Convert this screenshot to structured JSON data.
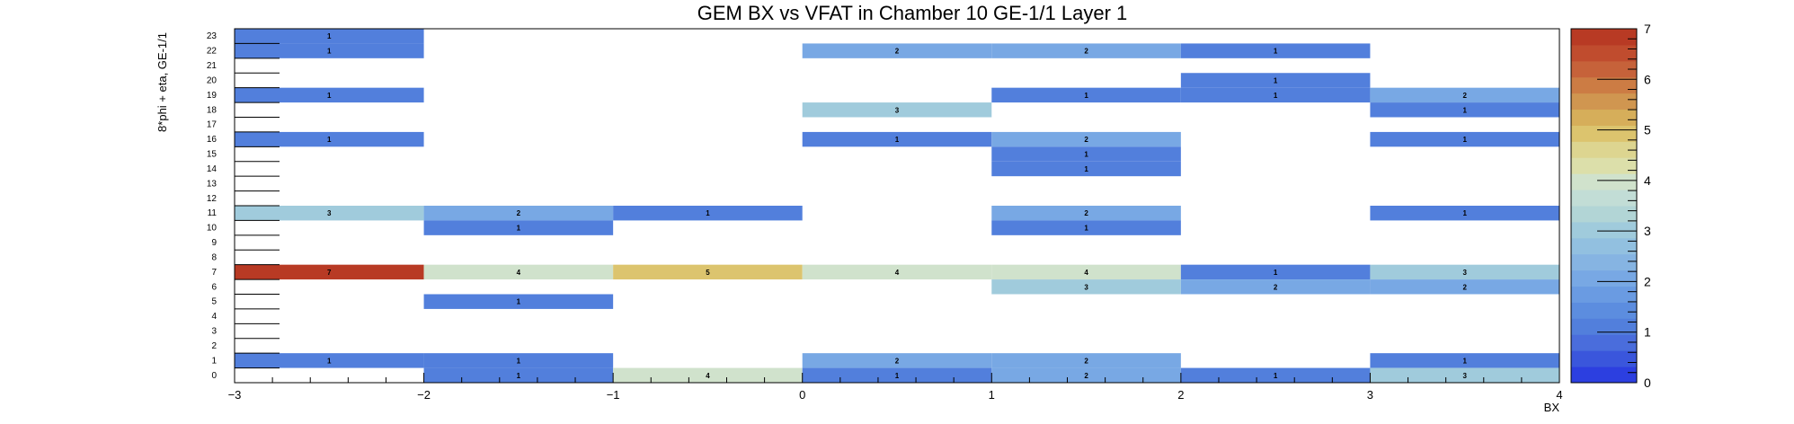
{
  "chart_data": {
    "type": "heatmap",
    "title": "GEM BX vs VFAT in Chamber 10 GE-1/1 Layer 1",
    "xlabel": "BX",
    "ylabel": "8*phi + eta, GE-1/1",
    "xlim": [
      -3,
      4
    ],
    "ylim": [
      0,
      24
    ],
    "x_ticks": [
      "−3",
      "−2",
      "−1",
      "0",
      "1",
      "2",
      "3",
      "4"
    ],
    "y_ticks": [
      "0",
      "1",
      "2",
      "3",
      "4",
      "5",
      "6",
      "7",
      "8",
      "9",
      "10",
      "11",
      "12",
      "13",
      "14",
      "15",
      "16",
      "17",
      "18",
      "19",
      "20",
      "21",
      "22",
      "23"
    ],
    "zlim": [
      0,
      7
    ],
    "z_ticks": [
      "0",
      "1",
      "2",
      "3",
      "4",
      "5",
      "6",
      "7"
    ],
    "cells": [
      {
        "x": -3,
        "y": 23,
        "value": 1
      },
      {
        "x": -3,
        "y": 22,
        "value": 1
      },
      {
        "x": -3,
        "y": 19,
        "value": 1
      },
      {
        "x": -3,
        "y": 16,
        "value": 1
      },
      {
        "x": -3,
        "y": 11,
        "value": 3
      },
      {
        "x": -3,
        "y": 7,
        "value": 7
      },
      {
        "x": -3,
        "y": 1,
        "value": 1
      },
      {
        "x": -2,
        "y": 11,
        "value": 2
      },
      {
        "x": -2,
        "y": 10,
        "value": 1
      },
      {
        "x": -2,
        "y": 7,
        "value": 4
      },
      {
        "x": -2,
        "y": 5,
        "value": 1
      },
      {
        "x": -2,
        "y": 1,
        "value": 1
      },
      {
        "x": -2,
        "y": 0,
        "value": 1
      },
      {
        "x": -1,
        "y": 11,
        "value": 1
      },
      {
        "x": -1,
        "y": 7,
        "value": 5
      },
      {
        "x": -1,
        "y": 0,
        "value": 4
      },
      {
        "x": 0,
        "y": 22,
        "value": 2
      },
      {
        "x": 0,
        "y": 18,
        "value": 3
      },
      {
        "x": 0,
        "y": 16,
        "value": 1
      },
      {
        "x": 0,
        "y": 7,
        "value": 4
      },
      {
        "x": 0,
        "y": 1,
        "value": 2
      },
      {
        "x": 0,
        "y": 0,
        "value": 1
      },
      {
        "x": 1,
        "y": 22,
        "value": 2
      },
      {
        "x": 1,
        "y": 19,
        "value": 1
      },
      {
        "x": 1,
        "y": 16,
        "value": 2
      },
      {
        "x": 1,
        "y": 15,
        "value": 1
      },
      {
        "x": 1,
        "y": 14,
        "value": 1
      },
      {
        "x": 1,
        "y": 11,
        "value": 2
      },
      {
        "x": 1,
        "y": 10,
        "value": 1
      },
      {
        "x": 1,
        "y": 7,
        "value": 4
      },
      {
        "x": 1,
        "y": 6,
        "value": 3
      },
      {
        "x": 1,
        "y": 1,
        "value": 2
      },
      {
        "x": 1,
        "y": 0,
        "value": 2
      },
      {
        "x": 2,
        "y": 22,
        "value": 1
      },
      {
        "x": 2,
        "y": 20,
        "value": 1
      },
      {
        "x": 2,
        "y": 19,
        "value": 1
      },
      {
        "x": 2,
        "y": 7,
        "value": 1
      },
      {
        "x": 2,
        "y": 6,
        "value": 2
      },
      {
        "x": 2,
        "y": 0,
        "value": 1
      },
      {
        "x": 3,
        "y": 19,
        "value": 2
      },
      {
        "x": 3,
        "y": 18,
        "value": 1
      },
      {
        "x": 3,
        "y": 16,
        "value": 1
      },
      {
        "x": 3,
        "y": 11,
        "value": 1
      },
      {
        "x": 3,
        "y": 7,
        "value": 3
      },
      {
        "x": 3,
        "y": 6,
        "value": 2
      },
      {
        "x": 3,
        "y": 1,
        "value": 1
      },
      {
        "x": 3,
        "y": 0,
        "value": 3
      }
    ],
    "colormap": [
      "#2c3fe0",
      "#3a56dc",
      "#4a6ddc",
      "#527fdc",
      "#5c8ddf",
      "#6a9be2",
      "#78a8e4",
      "#86b4e2",
      "#92c0e0",
      "#a0cbdc",
      "#b2d5d6",
      "#c2ddd6",
      "#d0e2cc",
      "#dcdfaa",
      "#ddd590",
      "#dcc46e",
      "#d6ae5a",
      "#d09650",
      "#cc7c44",
      "#c6623a",
      "#c04c2e",
      "#b83a24"
    ],
    "grid": false,
    "legend": "colorbar-right"
  }
}
